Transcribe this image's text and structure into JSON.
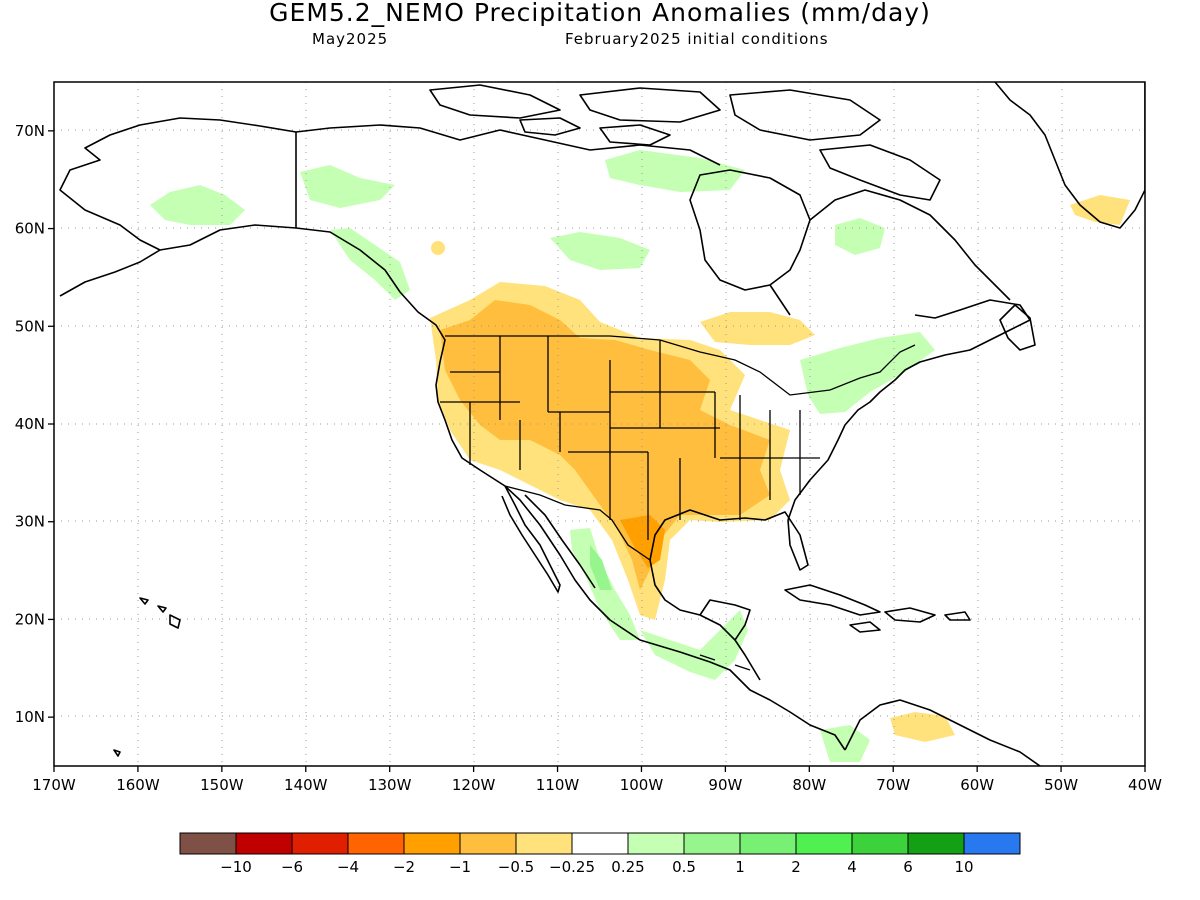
{
  "title": "GEM5.2_NEMO Precipitation Anomalies (mm/day)",
  "subtitle_left": "May2025",
  "subtitle_right": "February2025 initial conditions",
  "map": {
    "lon_range": [
      -170,
      -40
    ],
    "lat_range": [
      5,
      75
    ],
    "lon_ticks": [
      "170W",
      "160W",
      "150W",
      "140W",
      "130W",
      "120W",
      "110W",
      "100W",
      "90W",
      "80W",
      "70W",
      "60W",
      "50W",
      "40W"
    ],
    "lat_ticks": [
      "70N",
      "60N",
      "50N",
      "40N",
      "30N",
      "20N",
      "10N"
    ]
  },
  "colorbar": {
    "colors": [
      "#7f5146",
      "#c00000",
      "#e01e00",
      "#ff6400",
      "#ff9f00",
      "#ffbe3d",
      "#ffe27c",
      "#ffffff",
      "#c4ffb4",
      "#96f58c",
      "#78f073",
      "#50f050",
      "#3cd23c",
      "#14a014",
      "#2878f0"
    ],
    "labels": [
      "−10",
      "−6",
      "−4",
      "−2",
      "−1",
      "−0.5",
      "−0.25",
      "0.25",
      "0.5",
      "1",
      "2",
      "4",
      "6",
      "10"
    ]
  },
  "anomaly_colors": {
    "dry_light": "#ffe27c",
    "dry_mid": "#ffbe3d",
    "dry_strong": "#ff9f00",
    "wet_light": "#c4ffb4",
    "wet_mid": "#96f58c"
  }
}
